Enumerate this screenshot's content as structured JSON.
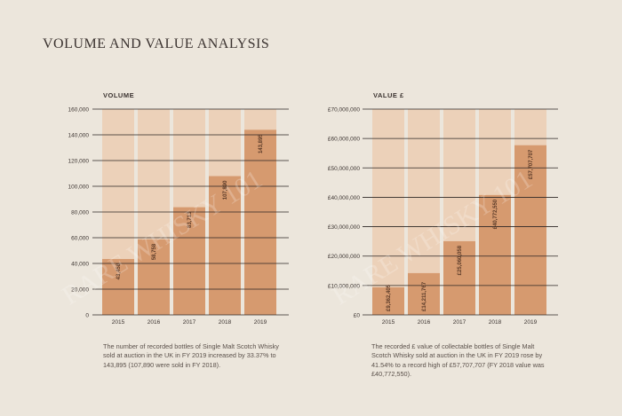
{
  "page": {
    "title": "VOLUME AND VALUE ANALYSIS",
    "watermark": "RARE WHISKY 101"
  },
  "colors": {
    "bar": "#d69a6f",
    "bar_shade": "#ecc9ad",
    "axis_line": "#2c2624",
    "text": "#3b3330",
    "watermark": "#ffffff"
  },
  "chart_data": [
    {
      "type": "bar",
      "title": "VOLUME",
      "categories": [
        "2015",
        "2016",
        "2017",
        "2018",
        "2019"
      ],
      "values": [
        43458,
        58758,
        83713,
        107890,
        143895
      ],
      "value_labels": [
        "43,458",
        "58,758",
        "83,713",
        "107,890",
        "143,895"
      ],
      "ylim": [
        0,
        160000
      ],
      "yticks": [
        0,
        20000,
        40000,
        60000,
        80000,
        100000,
        120000,
        140000,
        160000
      ],
      "ytick_labels": [
        "0",
        "20,000",
        "40,000",
        "60,000",
        "80,000",
        "100,000",
        "120,000",
        "140,000",
        "160,000"
      ],
      "grid": true,
      "caption": "The number of recorded bottles of Single Malt Scotch Whisky sold at auction in the UK in FY 2019 increased by 33.37% to 143,895 (107,890 were sold in FY 2018)."
    },
    {
      "type": "bar",
      "title": "VALUE £",
      "categories": [
        "2015",
        "2016",
        "2017",
        "2018",
        "2019"
      ],
      "values": [
        9362405,
        14211767,
        25060058,
        40772550,
        57707707
      ],
      "value_labels": [
        "£9,362,405",
        "£14,211,767",
        "£25,060,058",
        "£40,772,550",
        "£57,707,707"
      ],
      "ylim": [
        0,
        70000000
      ],
      "yticks": [
        0,
        10000000,
        20000000,
        30000000,
        40000000,
        50000000,
        60000000,
        70000000
      ],
      "ytick_labels": [
        "£0",
        "£10,000,000",
        "£20,000,000",
        "£30,000,000",
        "£40,000,000",
        "£50,000,000",
        "£60,000,000",
        "£70,000,000"
      ],
      "grid": true,
      "caption": "The recorded £ value of collectable bottles of Single Malt Scotch Whisky sold at auction in the UK in FY 2019 rose by 41.54% to a record high of £57,707,707 (FY 2018 value was £40,772,550)."
    }
  ]
}
